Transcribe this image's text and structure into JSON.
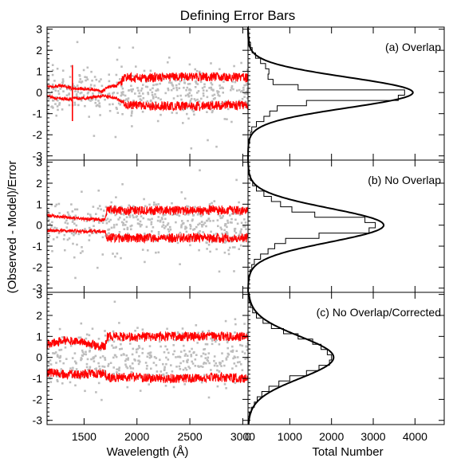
{
  "figure": {
    "title": "Defining Error Bars",
    "ylabel": "(Observed - Model)/Error",
    "left_xlabel": "Wavelength (Å)",
    "right_xlabel": "Total Number"
  },
  "colors": {
    "points": "#bdbdbd",
    "envelope": "#ff0000",
    "axes": "#000000",
    "background": "#ffffff"
  },
  "chart_data": [
    {
      "type": "scatter",
      "panel": "a",
      "xlabel": "",
      "ylabel": "(Observed - Model)/Error",
      "xlim": [
        1150,
        3050
      ],
      "ylim": [
        -3.2,
        3.1
      ],
      "x_ticks": [
        "1500",
        "2000",
        "2500",
        "3000"
      ],
      "y_ticks": [
        "-3",
        "-2",
        "-1",
        "0",
        "1",
        "2",
        "3"
      ],
      "series": [
        {
          "style": "grey points",
          "description_value_spread": 0.55
        },
        {
          "style": "red lines",
          "x": [
            1150,
            1300,
            1400,
            1550,
            1670,
            1720,
            1800,
            1900,
            2000,
            2200,
            2500,
            2800,
            3000
          ],
          "upper": [
            0.3,
            0.3,
            0.2,
            0.15,
            0.05,
            0.25,
            0.3,
            0.75,
            0.7,
            0.72,
            0.75,
            0.75,
            0.7
          ],
          "lower": [
            -0.2,
            -0.3,
            -0.3,
            -0.25,
            -0.15,
            -0.2,
            -0.25,
            -0.6,
            -0.6,
            -0.62,
            -0.65,
            -0.6,
            -0.6
          ]
        }
      ]
    },
    {
      "type": "line",
      "panel": "a",
      "label": "(a) Overlap",
      "xlabel": "",
      "xlim": [
        0,
        4700
      ],
      "ylim": [
        -3.2,
        3.1
      ],
      "x_ticks": [
        "0",
        "1000",
        "2000",
        "3000",
        "4000"
      ],
      "series": [
        {
          "style": "smooth curve",
          "peak": 3950,
          "center": 0.0,
          "sigma": 0.72
        },
        {
          "style": "step histogram",
          "bin_centers": [
            -3,
            -2.75,
            -2.5,
            -2.25,
            -2,
            -1.75,
            -1.5,
            -1.25,
            -1,
            -0.75,
            -0.5,
            -0.25,
            0,
            0.25,
            0.5,
            0.75,
            1,
            1.25,
            1.5,
            1.75,
            2,
            2.25,
            2.5,
            2.75,
            3
          ],
          "counts": [
            0,
            10,
            20,
            40,
            60,
            90,
            200,
            380,
            520,
            700,
            1400,
            3600,
            3750,
            1200,
            600,
            480,
            500,
            420,
            300,
            180,
            100,
            60,
            30,
            15,
            5
          ]
        }
      ]
    },
    {
      "type": "scatter",
      "panel": "b",
      "xlabel": "",
      "ylabel": "(Observed - Model)/Error",
      "xlim": [
        1150,
        3050
      ],
      "ylim": [
        -3.2,
        3.1
      ],
      "x_ticks": [
        "1500",
        "2000",
        "2500",
        "3000"
      ],
      "y_ticks": [
        "-3",
        "-2",
        "-1",
        "0",
        "1",
        "2",
        "3"
      ],
      "series": [
        {
          "style": "grey points",
          "description_value_spread": 0.6
        },
        {
          "style": "red lines",
          "x": [
            1150,
            1300,
            1500,
            1700,
            1715,
            1800,
            2000,
            2200,
            2500,
            2800,
            3000
          ],
          "upper": [
            0.45,
            0.4,
            0.3,
            0.25,
            0.7,
            0.72,
            0.7,
            0.7,
            0.7,
            0.72,
            0.7
          ],
          "lower": [
            -0.25,
            -0.25,
            -0.3,
            -0.3,
            -0.6,
            -0.62,
            -0.6,
            -0.62,
            -0.6,
            -0.62,
            -0.6
          ]
        }
      ]
    },
    {
      "type": "line",
      "panel": "b",
      "label": "(b) No Overlap",
      "xlabel": "",
      "xlim": [
        0,
        4700
      ],
      "ylim": [
        -3.2,
        3.1
      ],
      "x_ticks": [
        "0",
        "1000",
        "2000",
        "3000",
        "4000"
      ],
      "series": [
        {
          "style": "smooth curve",
          "peak": 3250,
          "center": 0.0,
          "sigma": 0.8
        },
        {
          "style": "step histogram",
          "bin_centers": [
            -3,
            -2.75,
            -2.5,
            -2.25,
            -2,
            -1.75,
            -1.5,
            -1.25,
            -1,
            -0.75,
            -0.5,
            -0.25,
            0,
            0.25,
            0.5,
            0.75,
            1,
            1.25,
            1.5,
            1.75,
            2,
            2.25,
            2.5,
            2.75,
            3
          ],
          "counts": [
            0,
            10,
            25,
            50,
            90,
            150,
            300,
            480,
            640,
            900,
            1700,
            2900,
            3050,
            2800,
            1600,
            1050,
            780,
            560,
            380,
            200,
            110,
            60,
            30,
            15,
            5
          ]
        }
      ]
    },
    {
      "type": "scatter",
      "panel": "c",
      "xlabel": "Wavelength (Å)",
      "ylabel": "(Observed - Model)/Error",
      "xlim": [
        1150,
        3050
      ],
      "ylim": [
        -3.2,
        3.1
      ],
      "x_ticks": [
        "1500",
        "2000",
        "2500",
        "3000"
      ],
      "y_ticks": [
        "-3",
        "-2",
        "-1",
        "0",
        "1",
        "2",
        "3"
      ],
      "series": [
        {
          "style": "grey points",
          "description_value_spread": 0.75
        },
        {
          "style": "red lines",
          "x": [
            1150,
            1300,
            1500,
            1700,
            1715,
            1800,
            2000,
            2200,
            2500,
            2800,
            3000
          ],
          "upper": [
            0.6,
            0.8,
            0.7,
            0.5,
            1.0,
            1.0,
            0.95,
            1.0,
            1.0,
            1.0,
            1.0
          ],
          "lower": [
            -0.7,
            -0.8,
            -0.8,
            -0.75,
            -0.95,
            -0.95,
            -0.95,
            -1.0,
            -1.0,
            -0.95,
            -1.0
          ]
        }
      ]
    },
    {
      "type": "line",
      "panel": "c",
      "label": "(c) No Overlap/Corrected",
      "xlabel": "Total Number",
      "xlim": [
        0,
        4700
      ],
      "ylim": [
        -3.2,
        3.1
      ],
      "x_ticks": [
        "0",
        "1000",
        "2000",
        "3000",
        "4000"
      ],
      "series": [
        {
          "style": "smooth curve",
          "peak": 2050,
          "center": 0.0,
          "sigma": 1.0
        },
        {
          "style": "step histogram",
          "bin_centers": [
            -3,
            -2.75,
            -2.5,
            -2.25,
            -2,
            -1.75,
            -1.5,
            -1.25,
            -1,
            -0.75,
            -0.5,
            -0.25,
            0,
            0.25,
            0.5,
            0.75,
            1,
            1.25,
            1.5,
            1.75,
            2,
            2.25,
            2.5,
            2.75,
            3
          ],
          "counts": [
            10,
            30,
            80,
            150,
            220,
            330,
            500,
            740,
            1000,
            1400,
            1700,
            1950,
            2000,
            1900,
            1750,
            1550,
            1200,
            850,
            560,
            360,
            200,
            110,
            60,
            25,
            10
          ]
        }
      ]
    }
  ]
}
